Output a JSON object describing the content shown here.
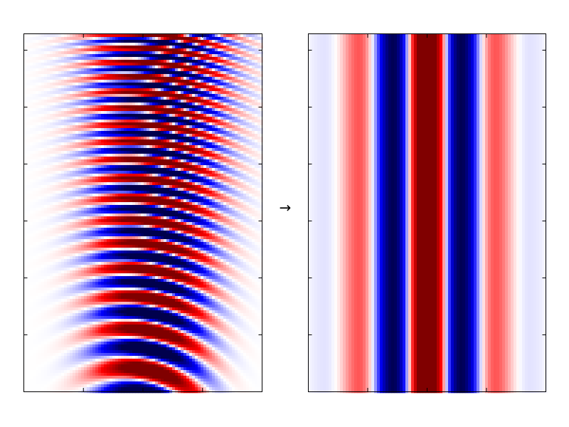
{
  "arrow": "→"
}
